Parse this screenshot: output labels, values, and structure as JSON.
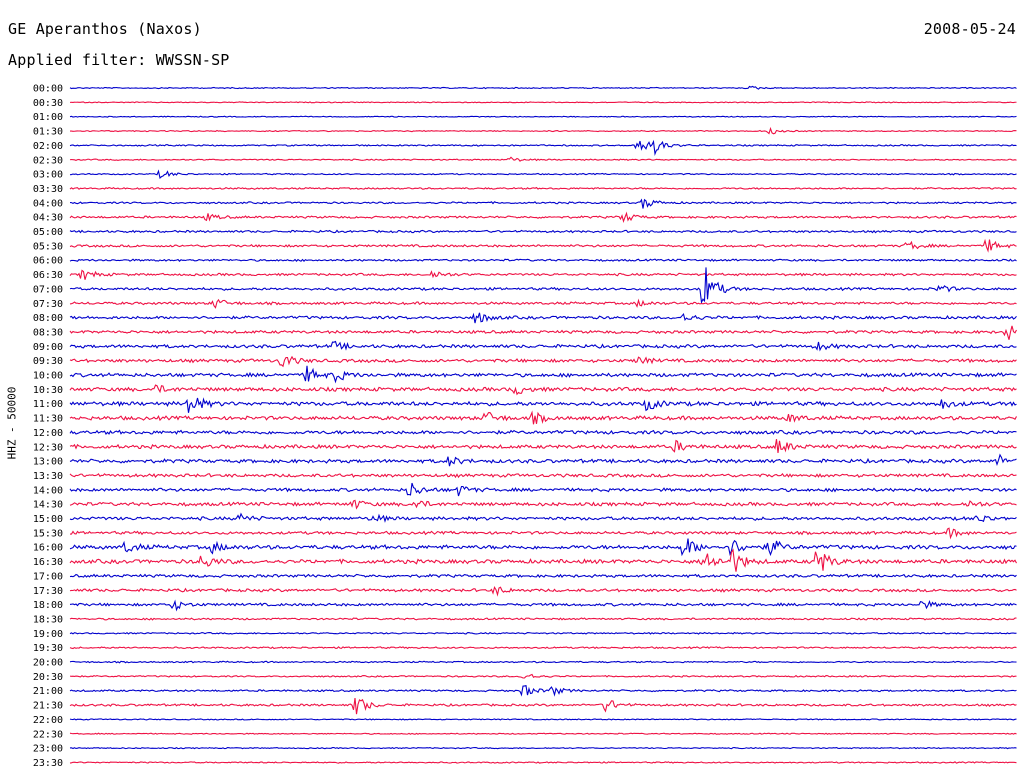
{
  "header": {
    "station": "GE Aperanthos (Naxos)",
    "date": "2008-05-24",
    "filter": "Applied filter: WWSSN-SP"
  },
  "chart_data": {
    "type": "line",
    "title": "GE Aperanthos (Naxos)",
    "ylabel": "HHZ - 50000",
    "colors": [
      "#0000cc",
      "#ee1144"
    ],
    "rows": [
      {
        "label": "00:00",
        "activity": 0.6,
        "events": [
          {
            "x": 0.72,
            "a": 1.5
          }
        ]
      },
      {
        "label": "00:30",
        "activity": 0.5,
        "events": []
      },
      {
        "label": "01:00",
        "activity": 0.5,
        "events": []
      },
      {
        "label": "01:30",
        "activity": 0.6,
        "events": [
          {
            "x": 0.74,
            "a": 3
          }
        ]
      },
      {
        "label": "02:00",
        "activity": 0.8,
        "events": [
          {
            "x": 0.6,
            "a": 9
          },
          {
            "x": 0.617,
            "a": 7
          }
        ]
      },
      {
        "label": "02:30",
        "activity": 0.7,
        "events": [
          {
            "x": 0.465,
            "a": 2.5
          }
        ]
      },
      {
        "label": "03:00",
        "activity": 0.7,
        "events": [
          {
            "x": 0.097,
            "a": 4
          }
        ]
      },
      {
        "label": "03:30",
        "activity": 0.9,
        "events": []
      },
      {
        "label": "04:00",
        "activity": 1.0,
        "events": [
          {
            "x": 0.606,
            "a": 6
          }
        ]
      },
      {
        "label": "04:30",
        "activity": 1.2,
        "events": [
          {
            "x": 0.585,
            "a": 5
          },
          {
            "x": 0.146,
            "a": 3
          }
        ]
      },
      {
        "label": "05:00",
        "activity": 1.2,
        "events": []
      },
      {
        "label": "05:30",
        "activity": 1.3,
        "events": [
          {
            "x": 0.885,
            "a": 5
          },
          {
            "x": 0.97,
            "a": 6
          }
        ]
      },
      {
        "label": "06:00",
        "activity": 1.1,
        "events": []
      },
      {
        "label": "06:30",
        "activity": 1.3,
        "events": [
          {
            "x": 0.015,
            "a": 5
          },
          {
            "x": 0.384,
            "a": 4
          }
        ]
      },
      {
        "label": "07:00",
        "activity": 1.4,
        "events": [
          {
            "x": 0.67,
            "a": 25
          },
          {
            "x": 0.918,
            "a": 4
          }
        ]
      },
      {
        "label": "07:30",
        "activity": 1.4,
        "events": [
          {
            "x": 0.154,
            "a": 5
          },
          {
            "x": 0.6,
            "a": 3
          }
        ]
      },
      {
        "label": "08:00",
        "activity": 1.6,
        "events": [
          {
            "x": 0.43,
            "a": 6
          },
          {
            "x": 0.65,
            "a": 4
          }
        ]
      },
      {
        "label": "08:30",
        "activity": 1.6,
        "events": [
          {
            "x": 0.99,
            "a": 8
          }
        ]
      },
      {
        "label": "09:00",
        "activity": 1.8,
        "events": [
          {
            "x": 0.28,
            "a": 4
          },
          {
            "x": 0.79,
            "a": 4
          }
        ]
      },
      {
        "label": "09:30",
        "activity": 1.8,
        "events": [
          {
            "x": 0.225,
            "a": 7
          },
          {
            "x": 0.6,
            "a": 4
          }
        ]
      },
      {
        "label": "10:00",
        "activity": 2.0,
        "events": [
          {
            "x": 0.25,
            "a": 8
          },
          {
            "x": 0.28,
            "a": 6
          }
        ]
      },
      {
        "label": "10:30",
        "activity": 2.1,
        "events": [
          {
            "x": 0.47,
            "a": 5
          },
          {
            "x": 0.09,
            "a": 4
          }
        ]
      },
      {
        "label": "11:00",
        "activity": 2.2,
        "events": [
          {
            "x": 0.126,
            "a": 12
          },
          {
            "x": 0.61,
            "a": 6
          },
          {
            "x": 0.92,
            "a": 5
          }
        ]
      },
      {
        "label": "11:30",
        "activity": 2.1,
        "events": [
          {
            "x": 0.44,
            "a": 6
          },
          {
            "x": 0.49,
            "a": 5
          },
          {
            "x": 0.76,
            "a": 4
          }
        ]
      },
      {
        "label": "12:00",
        "activity": 2.0,
        "events": []
      },
      {
        "label": "12:30",
        "activity": 2.0,
        "events": [
          {
            "x": 0.64,
            "a": 5
          },
          {
            "x": 0.748,
            "a": 8
          }
        ]
      },
      {
        "label": "13:00",
        "activity": 2.0,
        "events": [
          {
            "x": 0.4,
            "a": 5
          },
          {
            "x": 0.98,
            "a": 6
          }
        ]
      },
      {
        "label": "13:30",
        "activity": 1.8,
        "events": []
      },
      {
        "label": "14:00",
        "activity": 1.8,
        "events": [
          {
            "x": 0.36,
            "a": 7
          },
          {
            "x": 0.41,
            "a": 5
          }
        ]
      },
      {
        "label": "14:30",
        "activity": 1.9,
        "events": [
          {
            "x": 0.3,
            "a": 4
          },
          {
            "x": 0.365,
            "a": 4
          },
          {
            "x": 0.95,
            "a": 3
          }
        ]
      },
      {
        "label": "15:00",
        "activity": 1.8,
        "events": [
          {
            "x": 0.18,
            "a": 4
          },
          {
            "x": 0.32,
            "a": 4
          },
          {
            "x": 0.96,
            "a": 4
          }
        ]
      },
      {
        "label": "15:30",
        "activity": 1.6,
        "events": [
          {
            "x": 0.93,
            "a": 4
          }
        ]
      },
      {
        "label": "16:00",
        "activity": 2.2,
        "events": [
          {
            "x": 0.06,
            "a": 5
          },
          {
            "x": 0.15,
            "a": 5
          },
          {
            "x": 0.65,
            "a": 10
          },
          {
            "x": 0.7,
            "a": 8
          },
          {
            "x": 0.74,
            "a": 8
          }
        ]
      },
      {
        "label": "16:30",
        "activity": 2.2,
        "events": [
          {
            "x": 0.14,
            "a": 7
          },
          {
            "x": 0.67,
            "a": 12
          },
          {
            "x": 0.7,
            "a": 12
          },
          {
            "x": 0.79,
            "a": 14
          }
        ]
      },
      {
        "label": "17:00",
        "activity": 1.6,
        "events": []
      },
      {
        "label": "17:30",
        "activity": 1.6,
        "events": [
          {
            "x": 0.45,
            "a": 4
          }
        ]
      },
      {
        "label": "18:00",
        "activity": 1.5,
        "events": [
          {
            "x": 0.11,
            "a": 5
          },
          {
            "x": 0.9,
            "a": 4
          }
        ]
      },
      {
        "label": "18:30",
        "activity": 1.0,
        "events": []
      },
      {
        "label": "19:00",
        "activity": 0.8,
        "events": []
      },
      {
        "label": "19:30",
        "activity": 0.9,
        "events": []
      },
      {
        "label": "20:00",
        "activity": 0.8,
        "events": []
      },
      {
        "label": "20:30",
        "activity": 0.8,
        "events": [
          {
            "x": 0.48,
            "a": 4
          }
        ]
      },
      {
        "label": "21:00",
        "activity": 1.0,
        "events": [
          {
            "x": 0.48,
            "a": 6
          },
          {
            "x": 0.51,
            "a": 4
          }
        ]
      },
      {
        "label": "21:30",
        "activity": 1.2,
        "events": [
          {
            "x": 0.303,
            "a": 10
          },
          {
            "x": 0.565,
            "a": 8
          }
        ]
      },
      {
        "label": "22:00",
        "activity": 0.6,
        "events": []
      },
      {
        "label": "22:30",
        "activity": 0.6,
        "events": []
      },
      {
        "label": "23:00",
        "activity": 0.6,
        "events": []
      },
      {
        "label": "23:30",
        "activity": 0.7,
        "events": []
      }
    ]
  }
}
